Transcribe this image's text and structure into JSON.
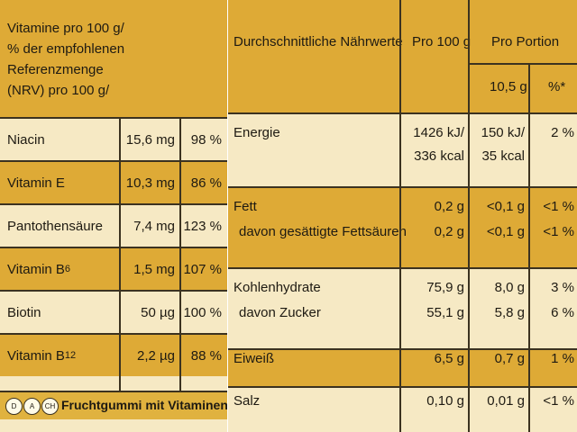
{
  "vitamins": {
    "header": [
      "Vitamine pro 100 g/",
      "% der empfohlenen Referenzmenge",
      "(NRV) pro 100 g/"
    ],
    "rows": [
      {
        "name": "Niacin",
        "sub": "",
        "amount": "15,6 mg",
        "percent": "98 %"
      },
      {
        "name": "Vitamin E",
        "sub": "",
        "amount": "10,3 mg",
        "percent": "86 %"
      },
      {
        "name": "Pantothensäure",
        "sub": "",
        "amount": "7,4 mg",
        "percent": "123 %"
      },
      {
        "name": "Vitamin B",
        "sub": "6",
        "amount": "1,5 mg",
        "percent": "107 %"
      },
      {
        "name": "Biotin",
        "sub": "",
        "amount": "50 µg",
        "percent": "100 %"
      },
      {
        "name": "Vitamin B",
        "sub": "12",
        "amount": "2,2 µg",
        "percent": "88 %"
      }
    ]
  },
  "banner": {
    "badges": [
      "D",
      "A",
      "CH"
    ],
    "text": "Fruchtgummi mit Vitaminen"
  },
  "nutrition": {
    "header": {
      "title": "Durchschnittliche Nährwerte",
      "per100": "Pro 100 g",
      "perPortion": "Pro Portion",
      "portionSize": "10,5 g",
      "percentRI": "%*"
    },
    "rows": [
      {
        "lines": [
          "Energie"
        ],
        "per100": [
          "1426 kJ/",
          "336 kcal"
        ],
        "portion": [
          "150 kJ/",
          "35 kcal"
        ],
        "pct": [
          "2 %"
        ]
      },
      {
        "lines": [
          "Fett",
          "davon gesättigte Fettsäuren"
        ],
        "per100": [
          "0,2 g",
          "0,2 g"
        ],
        "portion": [
          "<0,1 g",
          "<0,1 g"
        ],
        "pct": [
          "<1 %",
          "<1 %"
        ]
      },
      {
        "lines": [
          "Kohlenhydrate",
          "davon Zucker"
        ],
        "per100": [
          "75,9 g",
          "55,1 g"
        ],
        "portion": [
          "8,0 g",
          "5,8 g"
        ],
        "pct": [
          "3 %",
          "6 %"
        ]
      },
      {
        "lines": [
          "Eiweiß"
        ],
        "per100": [
          "6,5 g"
        ],
        "portion": [
          "0,7 g"
        ],
        "pct": [
          "1 %"
        ]
      },
      {
        "lines": [
          "Salz"
        ],
        "per100": [
          "0,10 g"
        ],
        "portion": [
          "0,01 g"
        ],
        "pct": [
          "<1 %"
        ]
      }
    ]
  }
}
